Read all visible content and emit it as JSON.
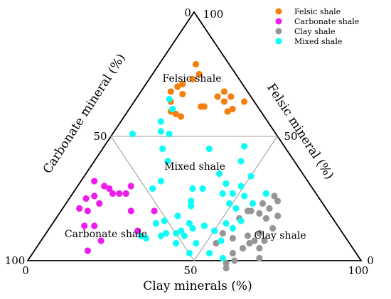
{
  "chart_data": {
    "type": "ternary-scatter",
    "axes": {
      "bottom": {
        "label": "Clay minerals (%)",
        "ticks": [
          "0",
          "50",
          "100"
        ]
      },
      "left": {
        "label": "Carbonate mineral (%)",
        "ticks": [
          "0",
          "50",
          "100"
        ]
      },
      "right": {
        "label": "Felsic mineral (%)",
        "ticks": [
          "100",
          "50",
          "0"
        ]
      }
    },
    "regions": [
      {
        "name": "Felsic shale",
        "label": "Felsic shale"
      },
      {
        "name": "Mixed shale",
        "label": "Mixed shale"
      },
      {
        "name": "Carbonate shale",
        "label": "Carbonate shale"
      },
      {
        "name": "Clay shale",
        "label": "Clay shale"
      }
    ],
    "legend_position": "top-right",
    "series": [
      {
        "name": "Felsic shale",
        "color": "#f47f0e",
        "points": [
          [
            14,
            11
          ],
          [
            11,
            10
          ],
          [
            13,
            14
          ],
          [
            9,
            23
          ],
          [
            10,
            20
          ],
          [
            11,
            18
          ],
          [
            13,
            20
          ],
          [
            11,
            25
          ],
          [
            13,
            27
          ],
          [
            17,
            25
          ],
          [
            15,
            26
          ],
          [
            21,
            17
          ],
          [
            22,
            16
          ],
          [
            24,
            10
          ],
          [
            25,
            7
          ],
          [
            27,
            9
          ],
          [
            28,
            6
          ],
          [
            33,
            3
          ],
          [
            31,
            8
          ],
          [
            30,
            10
          ]
        ]
      },
      {
        "name": "Carbonate shale",
        "color": "#ee1ced",
        "points": [
          [
            5,
            74
          ],
          [
            5,
            70
          ],
          [
            7,
            67
          ],
          [
            4,
            64
          ],
          [
            8,
            62
          ],
          [
            10,
            61
          ],
          [
            12,
            61
          ],
          [
            14,
            59
          ],
          [
            16,
            57
          ],
          [
            16,
            54
          ],
          [
            13,
            73
          ],
          [
            8,
            72
          ],
          [
            10,
            67
          ],
          [
            21,
            59
          ],
          [
            27,
            61
          ],
          [
            28,
            52
          ],
          [
            18,
            74
          ],
          [
            16,
            80
          ],
          [
            10,
            76
          ]
        ]
      },
      {
        "name": "Clay shale",
        "color": "#969696",
        "points": [
          [
            61,
            13
          ],
          [
            63,
            13
          ],
          [
            62,
            17
          ],
          [
            63,
            20
          ],
          [
            67,
            20
          ],
          [
            66,
            16
          ],
          [
            59,
            18
          ],
          [
            57,
            23
          ],
          [
            60,
            21
          ],
          [
            64,
            25
          ],
          [
            67,
            25
          ],
          [
            64,
            28
          ],
          [
            67,
            28
          ],
          [
            63,
            30
          ],
          [
            69,
            30
          ],
          [
            61,
            29
          ],
          [
            62,
            33
          ],
          [
            56,
            24
          ],
          [
            55,
            28
          ],
          [
            57,
            34
          ],
          [
            53,
            36
          ],
          [
            60,
            37
          ],
          [
            53,
            40
          ],
          [
            62,
            38
          ],
          [
            60,
            41
          ],
          [
            61,
            42
          ]
        ]
      },
      {
        "name": "Mixed shale",
        "color": "#0dfcf8",
        "points": [
          [
            44,
            16
          ],
          [
            50,
            16
          ],
          [
            40,
            25
          ],
          [
            44,
            25
          ],
          [
            48,
            25
          ],
          [
            52,
            22
          ],
          [
            52,
            27
          ],
          [
            56,
            21
          ],
          [
            58,
            15
          ],
          [
            56,
            28
          ],
          [
            52,
            33
          ],
          [
            49,
            28
          ],
          [
            50,
            38
          ],
          [
            46,
            40
          ],
          [
            37,
            39
          ],
          [
            35,
            36
          ],
          [
            38,
            33
          ],
          [
            31,
            54
          ],
          [
            31,
            60
          ],
          [
            29,
            61
          ],
          [
            36,
            53
          ],
          [
            41,
            52
          ],
          [
            42,
            48
          ],
          [
            36,
            46
          ],
          [
            23,
            48
          ],
          [
            22,
            38
          ],
          [
            18,
            37
          ],
          [
            14,
            34
          ],
          [
            17,
            32
          ],
          [
            12,
            32
          ],
          [
            13,
            26
          ],
          [
            10,
            25
          ],
          [
            32,
            23
          ],
          [
            43,
            44
          ],
          [
            47,
            50
          ],
          [
            53,
            44
          ],
          [
            58,
            41
          ],
          [
            54,
            38
          ],
          [
            55,
            32
          ],
          [
            40,
            48
          ],
          [
            35,
            55
          ],
          [
            47,
            46
          ],
          [
            38,
            40
          ],
          [
            45,
            28
          ],
          [
            49,
            21
          ],
          [
            42,
            12
          ],
          [
            41,
            44
          ],
          [
            33,
            51
          ],
          [
            39,
            50
          ],
          [
            24,
            44
          ],
          [
            6,
            43
          ]
        ]
      }
    ]
  }
}
